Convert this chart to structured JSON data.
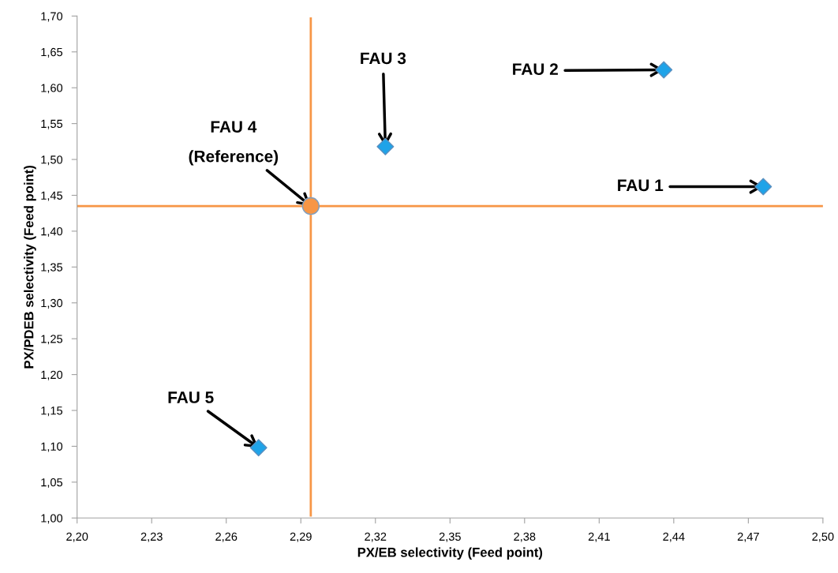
{
  "chart_data": {
    "type": "scatter",
    "xlabel": "PX/EB selectivity (Feed point)",
    "ylabel": "PX/PDEB selectivity (Feed point)",
    "series": [
      {
        "color": "#1fa3e8",
        "marker": "diamond",
        "x": [
          2.476,
          2.436,
          2.324,
          2.273
        ],
        "values": [
          1.462,
          1.625,
          1.518,
          1.098
        ]
      },
      {
        "color": "#f79646",
        "marker": "circle",
        "x": [
          2.294
        ],
        "values": [
          1.435
        ]
      }
    ],
    "xlim": [
      2.2,
      2.5
    ],
    "xticks": [
      {
        "value": 2.2,
        "label": "2,20"
      },
      {
        "value": 2.23,
        "label": "2,23"
      },
      {
        "value": 2.26,
        "label": "2,26"
      },
      {
        "value": 2.29,
        "label": "2,29"
      },
      {
        "value": 2.32,
        "label": "2,32"
      },
      {
        "value": 2.35,
        "label": "2,35"
      },
      {
        "value": 2.38,
        "label": "2,38"
      },
      {
        "value": 2.41,
        "label": "2,41"
      },
      {
        "value": 2.44,
        "label": "2,44"
      },
      {
        "value": 2.47,
        "label": "2,47"
      },
      {
        "value": 2.5,
        "label": "2,50"
      }
    ],
    "ylim": [
      1.0,
      1.7
    ],
    "yticks": [
      {
        "value": 1.0,
        "label": "1,00"
      },
      {
        "value": 1.05,
        "label": "1,05"
      },
      {
        "value": 1.1,
        "label": "1,10"
      },
      {
        "value": 1.15,
        "label": "1,15"
      },
      {
        "value": 1.2,
        "label": "1,20"
      },
      {
        "value": 1.25,
        "label": "1,25"
      },
      {
        "value": 1.3,
        "label": "1,30"
      },
      {
        "value": 1.35,
        "label": "1,35"
      },
      {
        "value": 1.4,
        "label": "1,40"
      },
      {
        "value": 1.45,
        "label": "1,45"
      },
      {
        "value": 1.5,
        "label": "1,50"
      },
      {
        "value": 1.55,
        "label": "1,55"
      },
      {
        "value": 1.6,
        "label": "1,60"
      },
      {
        "value": 1.65,
        "label": "1,65"
      },
      {
        "value": 1.7,
        "label": "1,70"
      }
    ],
    "ref_lines": [
      {
        "axis": "x",
        "value": 2.294,
        "color": "#f79646"
      },
      {
        "axis": "y",
        "value": 1.435,
        "color": "#f79646"
      }
    ],
    "annotations": [
      {
        "text": "FAU 1",
        "x": 2.476,
        "y": 1.462
      },
      {
        "text": "FAU 2",
        "x": 2.436,
        "y": 1.625
      },
      {
        "text": "FAU 3",
        "x": 2.324,
        "y": 1.518
      },
      {
        "text": "FAU 4\n(Reference)",
        "x": 2.294,
        "y": 1.435
      },
      {
        "text": "FAU 5",
        "x": 2.273,
        "y": 1.098
      }
    ],
    "grid": false,
    "legend": false
  }
}
